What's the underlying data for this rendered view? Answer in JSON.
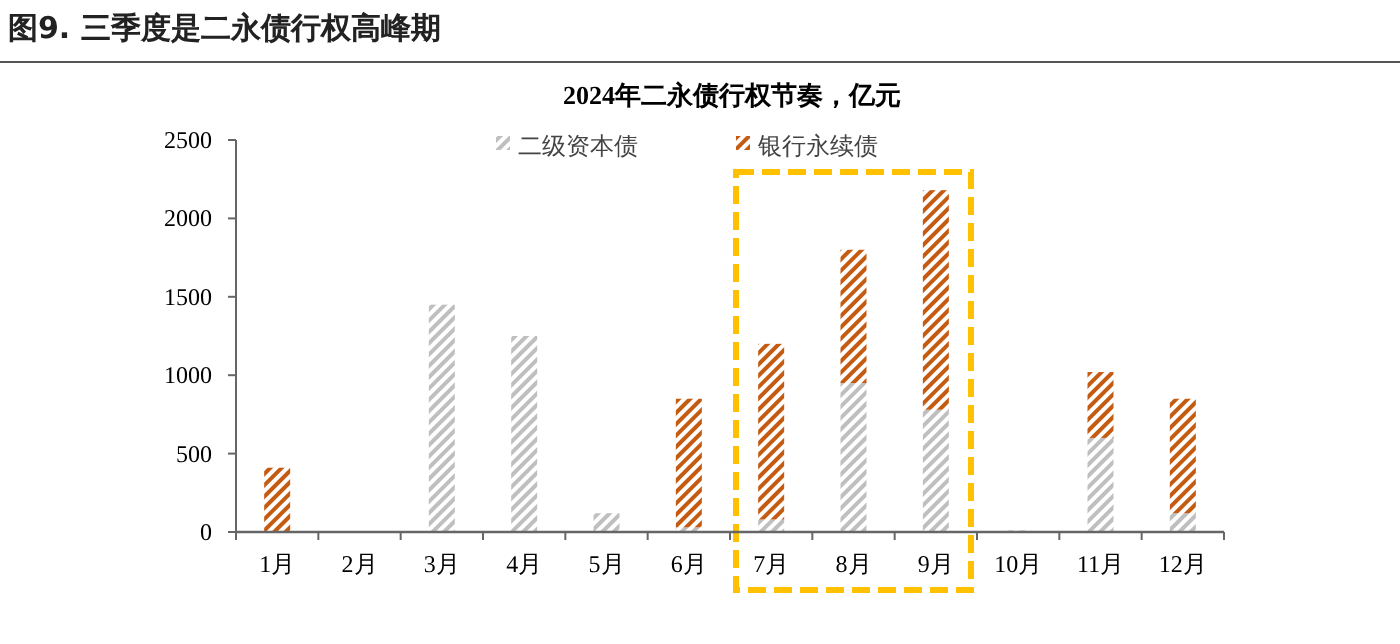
{
  "chart_data": {
    "type": "bar",
    "title": "图9. 三季度是二永债行权高峰期",
    "subtitle": "2024年二永债行权节奏，亿元",
    "categories": [
      "1月",
      "2月",
      "3月",
      "4月",
      "5月",
      "6月",
      "7月",
      "8月",
      "9月",
      "10月",
      "11月",
      "12月"
    ],
    "stacked": true,
    "series": [
      {
        "name": "二级资本债",
        "color": "#bfbfbf",
        "values": [
          0,
          0,
          1450,
          1250,
          120,
          30,
          80,
          950,
          780,
          10,
          600,
          120
        ]
      },
      {
        "name": "银行永续债",
        "color": "#c55a11",
        "values": [
          410,
          0,
          0,
          0,
          0,
          820,
          1120,
          850,
          1400,
          0,
          420,
          730
        ]
      }
    ],
    "ylim": [
      0,
      2500
    ],
    "yticks": [
      0,
      500,
      1000,
      1500,
      2000,
      2500
    ],
    "grid": false,
    "legend": "top"
  }
}
